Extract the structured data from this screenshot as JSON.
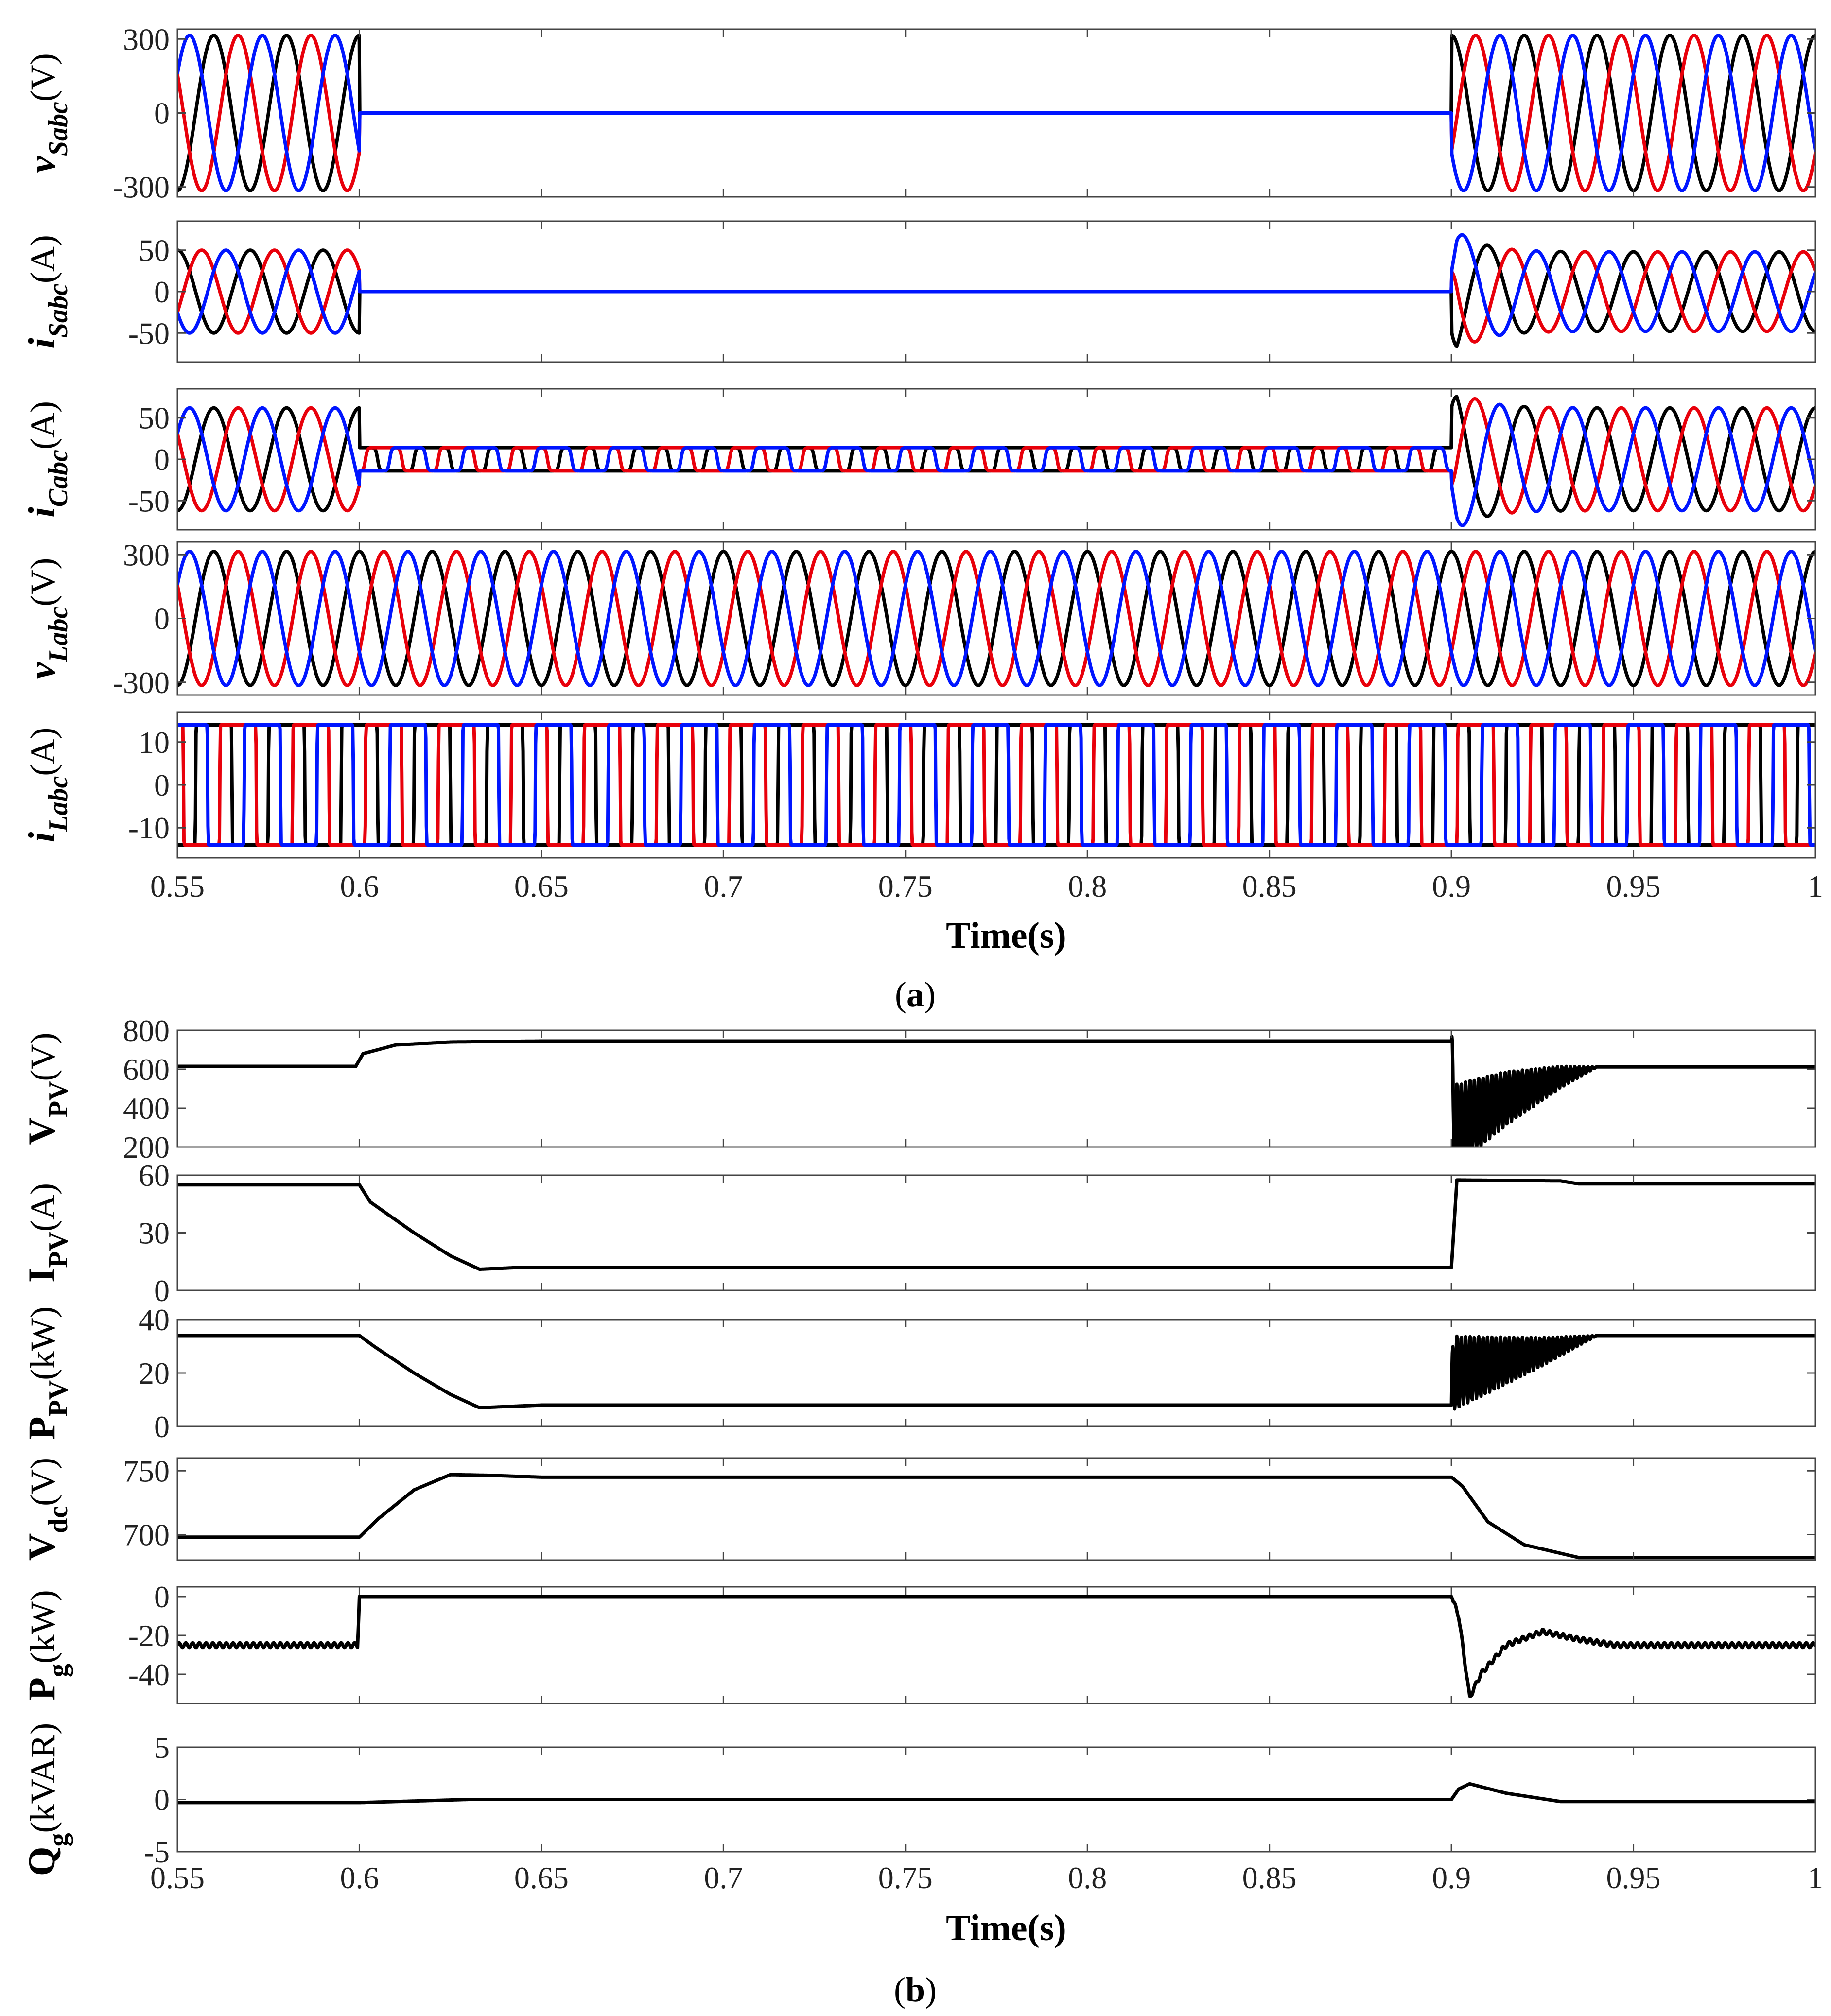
{
  "figure": {
    "caption_a": "a",
    "caption_b": "b"
  },
  "colors": {
    "phase_a": "#000000",
    "phase_b": "#e8000b",
    "phase_c": "#0015ff",
    "single": "#000000"
  },
  "chart_data": [
    {
      "id": "vSabc",
      "group": "a",
      "type": "line",
      "ylabel": {
        "main": "v",
        "sub": "Sabc",
        "unit": "(V)"
      },
      "xlim": [
        0.55,
        1
      ],
      "ylim": [
        -340,
        340
      ],
      "yticks": [
        -300,
        0,
        300
      ],
      "ytick_labels": [
        "-300",
        "0",
        "300"
      ],
      "series": [
        {
          "color_key": "phase_a",
          "phase_deg": 90
        },
        {
          "color_key": "phase_b",
          "phase_deg": -30
        },
        {
          "color_key": "phase_c",
          "phase_deg": 210
        }
      ],
      "frequency_hz": 50,
      "segments": [
        {
          "t0": 0.55,
          "t1": 0.6,
          "amplitude": 315
        },
        {
          "t0": 0.6,
          "t1": 0.9,
          "amplitude": 0
        },
        {
          "t0": 0.9,
          "t1": 1.0,
          "amplitude": 315
        }
      ]
    },
    {
      "id": "iSabc",
      "group": "a",
      "type": "line",
      "ylabel": {
        "main": "i",
        "sub": "Sabc",
        "unit": "(A)"
      },
      "xlim": [
        0.55,
        1
      ],
      "ylim": [
        -85,
        85
      ],
      "yticks": [
        -50,
        0,
        50
      ],
      "ytick_labels": [
        "-50",
        "0",
        "50"
      ],
      "series": [
        {
          "color_key": "phase_a",
          "phase_deg": -90
        },
        {
          "color_key": "phase_b",
          "phase_deg": 150
        },
        {
          "color_key": "phase_c",
          "phase_deg": 30
        }
      ],
      "frequency_hz": 50,
      "segments": [
        {
          "t0": 0.55,
          "t1": 0.6,
          "amplitude": 50
        },
        {
          "t0": 0.6,
          "t1": 0.9,
          "amplitude": 0
        },
        {
          "t0": 0.9,
          "t1": 1.0,
          "amplitude": 48,
          "transient_peak": 80,
          "transient_tau": 0.007
        }
      ]
    },
    {
      "id": "iCabc",
      "group": "a",
      "type": "line",
      "ylabel": {
        "main": "i",
        "sub": "Cabc",
        "unit": "(A)"
      },
      "xlim": [
        0.55,
        1
      ],
      "ylim": [
        -85,
        85
      ],
      "yticks": [
        -50,
        0,
        50
      ],
      "ytick_labels": [
        "-50",
        "0",
        "50"
      ],
      "series": [
        {
          "color_key": "phase_a",
          "phase_deg": 90
        },
        {
          "color_key": "phase_b",
          "phase_deg": -30
        },
        {
          "color_key": "phase_c",
          "phase_deg": 210
        }
      ],
      "frequency_hz": 50,
      "segments": [
        {
          "t0": 0.55,
          "t1": 0.6,
          "amplitude": 62
        },
        {
          "t0": 0.6,
          "t1": 0.9,
          "amplitude": 14,
          "shape": "square"
        },
        {
          "t0": 0.9,
          "t1": 1.0,
          "amplitude": 62,
          "transient_peak": 90,
          "transient_tau": 0.007
        }
      ]
    },
    {
      "id": "vLabc",
      "group": "a",
      "type": "line",
      "ylabel": {
        "main": "v",
        "sub": "Labc",
        "unit": "(V)"
      },
      "xlim": [
        0.55,
        1
      ],
      "ylim": [
        -360,
        360
      ],
      "yticks": [
        -300,
        0,
        300
      ],
      "ytick_labels": [
        "-300",
        "0",
        "300"
      ],
      "series": [
        {
          "color_key": "phase_a",
          "phase_deg": 90
        },
        {
          "color_key": "phase_b",
          "phase_deg": -30
        },
        {
          "color_key": "phase_c",
          "phase_deg": 210
        }
      ],
      "frequency_hz": 50,
      "segments": [
        {
          "t0": 0.55,
          "t1": 1.0,
          "amplitude": 315
        }
      ]
    },
    {
      "id": "iLabc",
      "group": "a",
      "type": "line",
      "ylabel": {
        "main": "i",
        "sub": "Labc",
        "unit": "(A)"
      },
      "xlim": [
        0.55,
        1
      ],
      "ylim": [
        -17,
        17
      ],
      "yticks": [
        -10,
        0,
        10
      ],
      "ytick_labels": [
        "-10",
        "0",
        "10"
      ],
      "series": [
        {
          "color_key": "phase_a",
          "phase_deg": 90
        },
        {
          "color_key": "phase_b",
          "phase_deg": -30
        },
        {
          "color_key": "phase_c",
          "phase_deg": 210
        }
      ],
      "frequency_hz": 50,
      "segments": [
        {
          "t0": 0.55,
          "t1": 1.0,
          "amplitude": 14,
          "shape": "square"
        }
      ]
    },
    {
      "id": "VPV",
      "group": "b",
      "type": "line",
      "ylabel": {
        "main": "V",
        "sub": "PV",
        "unit": "(V)"
      },
      "xlim": [
        0.55,
        1
      ],
      "ylim": [
        200,
        800
      ],
      "yticks": [
        200,
        400,
        600,
        800
      ],
      "ytick_labels": [
        "200",
        "400",
        "600",
        "800"
      ],
      "x": [
        0.55,
        0.599,
        0.601,
        0.61,
        0.625,
        0.65,
        0.9,
        0.9005,
        0.905,
        0.915,
        0.93,
        0.94,
        1.0
      ],
      "values": [
        615,
        615,
        680,
        725,
        740,
        745,
        745,
        300,
        350,
        450,
        560,
        612,
        612
      ],
      "oscillation": {
        "t0": 0.9,
        "t1": 0.94,
        "amplitude": 220,
        "period": 0.0012
      }
    },
    {
      "id": "IPV",
      "group": "b",
      "type": "line",
      "ylabel": {
        "main": "I",
        "sub": "PV",
        "unit": "(A)"
      },
      "xlim": [
        0.55,
        1
      ],
      "ylim": [
        0,
        60
      ],
      "yticks": [
        0,
        30,
        60
      ],
      "ytick_labels": [
        "0",
        "30",
        "60"
      ],
      "x": [
        0.55,
        0.6,
        0.603,
        0.615,
        0.625,
        0.633,
        0.645,
        0.65,
        0.9,
        0.9015,
        0.93,
        0.935,
        1.0
      ],
      "values": [
        55,
        55,
        46,
        30,
        18,
        11,
        12,
        12,
        12,
        57.5,
        57,
        55.5,
        55.5
      ]
    },
    {
      "id": "PPV",
      "group": "b",
      "type": "line",
      "ylabel": {
        "main": "P",
        "sub": "PV",
        "unit": "(kW)"
      },
      "xlim": [
        0.55,
        1
      ],
      "ylim": [
        0,
        40
      ],
      "yticks": [
        0,
        20,
        40
      ],
      "ytick_labels": [
        "0",
        "20",
        "40"
      ],
      "x": [
        0.55,
        0.6,
        0.604,
        0.615,
        0.625,
        0.633,
        0.65,
        0.9,
        0.9005,
        0.91,
        0.925,
        0.94,
        1.0
      ],
      "values": [
        34,
        34,
        30,
        20,
        12,
        7,
        8,
        8,
        20,
        23,
        28,
        34,
        34
      ],
      "oscillation": {
        "t0": 0.9,
        "t1": 0.94,
        "amplitude": 14,
        "period": 0.0012
      }
    },
    {
      "id": "Vdc",
      "group": "b",
      "type": "line",
      "ylabel": {
        "main": "V",
        "sub": "dc",
        "unit": "(V)"
      },
      "xlim": [
        0.55,
        1
      ],
      "ylim": [
        680,
        760
      ],
      "yticks": [
        700,
        750
      ],
      "ytick_labels": [
        "700",
        "750"
      ],
      "x": [
        0.55,
        0.6,
        0.605,
        0.615,
        0.625,
        0.635,
        0.65,
        0.9,
        0.903,
        0.91,
        0.92,
        0.935,
        1.0
      ],
      "values": [
        698,
        698,
        712,
        735,
        747,
        746.5,
        745,
        745,
        738,
        710,
        692,
        682,
        682
      ]
    },
    {
      "id": "Pg",
      "group": "b",
      "type": "line",
      "ylabel": {
        "main": "P",
        "sub": "g",
        "unit": "(kW)"
      },
      "xlim": [
        0.55,
        1
      ],
      "ylim": [
        -55,
        5
      ],
      "yticks": [
        -40,
        -20,
        0
      ],
      "ytick_labels": [
        "-40",
        "-20",
        "0"
      ],
      "x": [
        0.55,
        0.5995,
        0.6,
        0.9,
        0.902,
        0.905,
        0.908,
        0.915,
        0.925,
        0.935,
        0.945,
        1.0
      ],
      "values": [
        -25,
        -25,
        0,
        0,
        -10,
        -52,
        -40,
        -25,
        -18,
        -22,
        -25,
        -25
      ],
      "noise": 1.2
    },
    {
      "id": "Qg",
      "group": "b",
      "type": "line",
      "ylabel": {
        "main": "Q",
        "sub": "g",
        "unit": "(kVAR)"
      },
      "xlim": [
        0.55,
        1
      ],
      "ylim": [
        -5,
        5
      ],
      "yticks": [
        -5,
        0,
        5
      ],
      "ytick_labels": [
        "-5",
        "0",
        "5"
      ],
      "x": [
        0.55,
        0.6,
        0.63,
        0.9,
        0.902,
        0.905,
        0.915,
        0.93,
        1.0
      ],
      "values": [
        -0.3,
        -0.3,
        0,
        0,
        1.0,
        1.5,
        0.6,
        -0.2,
        -0.2
      ]
    }
  ],
  "axes": {
    "xticks": [
      0.55,
      0.6,
      0.65,
      0.7,
      0.75,
      0.8,
      0.85,
      0.9,
      0.95,
      1
    ],
    "xtick_labels": [
      "0.55",
      "0.6",
      "0.65",
      "0.7",
      "0.75",
      "0.8",
      "0.85",
      "0.9",
      "0.95",
      "1"
    ],
    "xlabel_a": "Time(s)",
    "xlabel_b": "Time(s)"
  }
}
